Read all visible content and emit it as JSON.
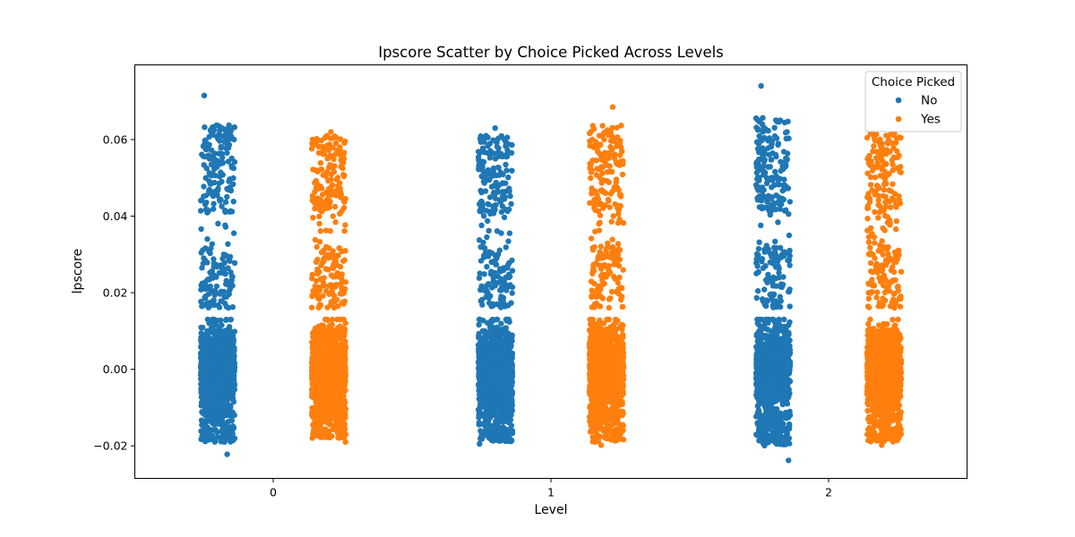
{
  "chart_data": {
    "type": "scatter",
    "title": "Ipscore Scatter by Choice Picked Across Levels",
    "xlabel": "Level",
    "ylabel": "lpscore",
    "categories": [
      "0",
      "1",
      "2"
    ],
    "ylim": [
      -0.0285,
      0.0795
    ],
    "yticks": [
      -0.02,
      0.0,
      0.02,
      0.04,
      0.06
    ],
    "ytick_labels": [
      "−0.02",
      "0.00",
      "0.02",
      "0.04",
      "0.06"
    ],
    "grid": false,
    "legend": {
      "title": "Choice Picked",
      "placement": "top-right",
      "entries": [
        "No",
        "Yes"
      ]
    },
    "series": [
      {
        "name": "No",
        "color": "#1f77b4",
        "groups": [
          {
            "level": "0",
            "min": -0.0222,
            "max": 0.0715,
            "dense_range": [
              -0.019,
              0.014
            ],
            "upper_range": [
              0.016,
              0.064
            ]
          },
          {
            "level": "1",
            "min": -0.0195,
            "max": 0.063,
            "dense_range": [
              -0.019,
              0.014
            ],
            "upper_range": [
              0.016,
              0.062
            ]
          },
          {
            "level": "2",
            "min": -0.0238,
            "max": 0.074,
            "dense_range": [
              -0.02,
              0.014
            ],
            "upper_range": [
              0.016,
              0.066
            ]
          }
        ]
      },
      {
        "name": "Yes",
        "color": "#ff7f0e",
        "groups": [
          {
            "level": "0",
            "min": -0.019,
            "max": 0.062,
            "dense_range": [
              -0.018,
              0.014
            ],
            "upper_range": [
              0.016,
              0.061
            ]
          },
          {
            "level": "1",
            "min": -0.0198,
            "max": 0.0685,
            "dense_range": [
              -0.019,
              0.014
            ],
            "upper_range": [
              0.016,
              0.064
            ]
          },
          {
            "level": "2",
            "min": -0.0198,
            "max": 0.0615,
            "dense_range": [
              -0.019,
              0.014
            ],
            "upper_range": [
              0.016,
              0.062
            ]
          }
        ]
      }
    ]
  }
}
